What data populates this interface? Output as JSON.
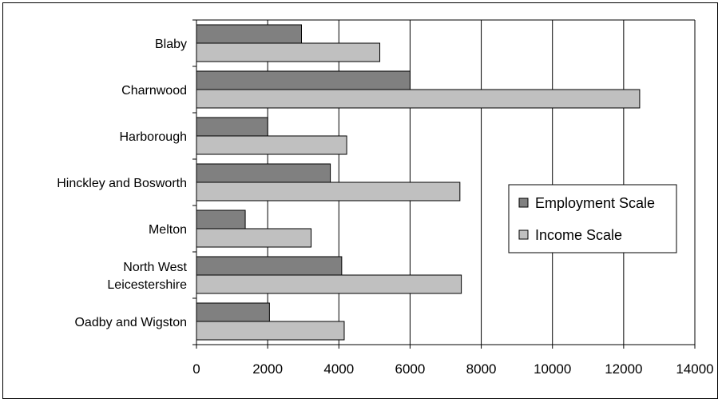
{
  "chart_data": {
    "type": "bar",
    "orientation": "horizontal",
    "title": "",
    "xlabel": "",
    "ylabel": "",
    "categories": [
      [
        "Blaby"
      ],
      [
        "Charnwood"
      ],
      [
        "Harborough"
      ],
      [
        "Hinckley and Bosworth"
      ],
      [
        "Melton"
      ],
      [
        "North West",
        "Leicestershire"
      ],
      [
        "Oadby and Wigston"
      ]
    ],
    "series": [
      {
        "name": "Employment Scale",
        "color": "#808080",
        "values": [
          2950,
          6000,
          2000,
          3760,
          1370,
          4080,
          2050
        ]
      },
      {
        "name": "Income Scale",
        "color": "#c0c0c0",
        "values": [
          5150,
          12450,
          4220,
          7400,
          3220,
          7440,
          4150
        ]
      }
    ],
    "xlim": [
      0,
      14000
    ],
    "xticks": [
      0,
      2000,
      4000,
      6000,
      8000,
      10000,
      12000,
      14000
    ],
    "grid": "vertical",
    "legend_position": "right"
  }
}
